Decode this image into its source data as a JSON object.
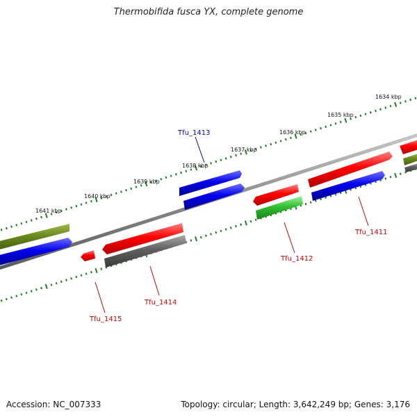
{
  "title": "Thermobifida fusca YX, complete genome",
  "footer": {
    "accession": "Accession: NC_007333",
    "summary": "Topology: circular; Length: 3,642,249 bp; Genes: 3,176"
  },
  "colors": {
    "backbone": "#8a8a8a",
    "tick": "#1f7a1f",
    "label_red": "#c00000",
    "label_blue": "#0000b0"
  },
  "scale_labels": [
    "1641 kbp",
    "1640 kbp",
    "1639 kbp",
    "1638 kbp",
    "1637 kbp",
    "1636 kbp",
    "1635 kbp",
    "1634 kbp"
  ],
  "gene_labels": [
    {
      "name": "Tfu_1413",
      "color": "blue"
    },
    {
      "name": "Tfu_1411",
      "color": "red"
    },
    {
      "name": "Tfu_1412",
      "color": "red"
    },
    {
      "name": "Tfu_1414",
      "color": "red"
    },
    {
      "name": "Tfu_1415",
      "color": "red"
    }
  ]
}
